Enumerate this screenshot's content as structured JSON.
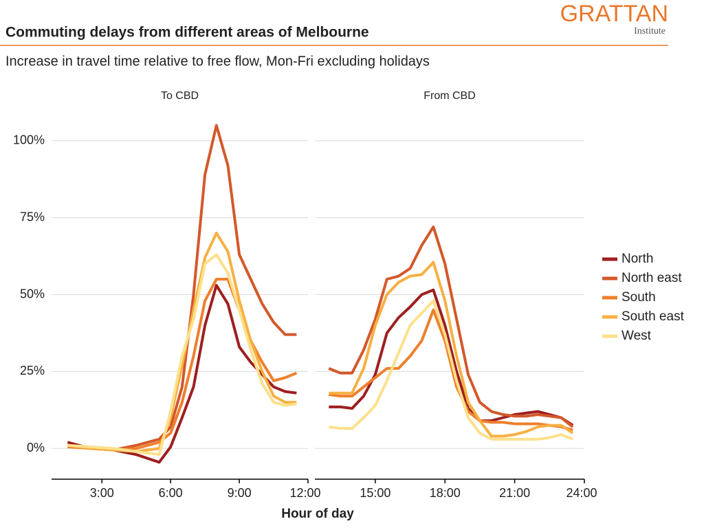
{
  "brand": {
    "name": "GRATTAN",
    "sub": "Institute"
  },
  "title": "Commuting delays from different areas of Melbourne",
  "subtitle": "Increase in travel time relative to free flow, Mon-Fri excluding holidays",
  "x_label": "Hour of day",
  "legend_position": "right",
  "chart_data": [
    {
      "type": "line",
      "title": "To CBD",
      "x": [
        1.5,
        2.5,
        3.5,
        4.5,
        5.5,
        6,
        6.5,
        7,
        7.5,
        8,
        8.5,
        9,
        9.5,
        10,
        10.5,
        11,
        11.5
      ],
      "xlim": [
        0.8,
        12
      ],
      "xticks": [
        {
          "value": 3,
          "label": "3:00"
        },
        {
          "value": 6,
          "label": "6:00"
        },
        {
          "value": 9,
          "label": "9:00"
        },
        {
          "value": 12,
          "label": "12:00"
        }
      ],
      "ylim": [
        -10,
        110
      ],
      "yticks": [
        {
          "value": 0,
          "label": "0%"
        },
        {
          "value": 25,
          "label": "25%"
        },
        {
          "value": 50,
          "label": "50%"
        },
        {
          "value": 75,
          "label": "75%"
        },
        {
          "value": 100,
          "label": "100%"
        }
      ],
      "grid": true,
      "series": [
        {
          "name": "North",
          "color": "#9e1f1f",
          "values": [
            2,
            0,
            -0.5,
            -2,
            -4.5,
            0.5,
            10,
            20,
            40,
            53,
            47,
            33,
            28,
            24,
            20,
            18.5,
            18
          ]
        },
        {
          "name": "North east",
          "color": "#d4582a",
          "values": [
            1,
            0,
            -0.5,
            1,
            3,
            7,
            20,
            50,
            89,
            105,
            92,
            63,
            55,
            47,
            41,
            37,
            37
          ]
        },
        {
          "name": "South",
          "color": "#ee7f2d",
          "values": [
            0.5,
            0,
            -0.5,
            0,
            2,
            5,
            15,
            30,
            48,
            55,
            55,
            45,
            35,
            28,
            22,
            23,
            24.5
          ]
        },
        {
          "name": "South east",
          "color": "#f6b043",
          "values": [
            1,
            0,
            -0.5,
            -1,
            0,
            10,
            27,
            45,
            62,
            70,
            64,
            48,
            35,
            25,
            17,
            15,
            15
          ]
        },
        {
          "name": "West",
          "color": "#fde08b",
          "values": [
            1,
            0.5,
            0,
            -1,
            -2,
            12,
            30,
            42,
            60,
            63,
            57,
            45,
            32,
            21,
            15,
            14,
            14.5
          ]
        }
      ]
    },
    {
      "type": "line",
      "title": "From CBD",
      "x": [
        13,
        13.5,
        14,
        14.5,
        15,
        15.5,
        16,
        16.5,
        17,
        17.5,
        18,
        18.5,
        19,
        19.5,
        20,
        20.5,
        21,
        21.5,
        22,
        22.5,
        23,
        23.5
      ],
      "xlim": [
        12.4,
        24
      ],
      "xticks": [
        {
          "value": 15,
          "label": "15:00"
        },
        {
          "value": 18,
          "label": "18:00"
        },
        {
          "value": 21,
          "label": "21:00"
        },
        {
          "value": 24,
          "label": "24:00"
        }
      ],
      "ylim": [
        -10,
        110
      ],
      "yticks": [
        0,
        25,
        50,
        75,
        100
      ],
      "grid": true,
      "series": [
        {
          "name": "North",
          "color": "#9e1f1f",
          "values": [
            13.5,
            13.5,
            13,
            17,
            24,
            37.5,
            42.5,
            46,
            50,
            51.5,
            40,
            25,
            13,
            9,
            9,
            10,
            11,
            11.5,
            12,
            11,
            10,
            7.5
          ]
        },
        {
          "name": "North east",
          "color": "#d4582a",
          "values": [
            26,
            24.5,
            24.5,
            32,
            42,
            55,
            56,
            58.5,
            66,
            72,
            60,
            42,
            24,
            15,
            12,
            11,
            10.5,
            10.5,
            11,
            10.5,
            10,
            7
          ]
        },
        {
          "name": "South",
          "color": "#ee7f2d",
          "values": [
            17.5,
            17,
            17,
            20,
            23,
            26,
            26,
            30,
            35,
            45,
            35,
            20,
            12,
            9,
            8.5,
            8.5,
            8,
            8,
            8,
            7.5,
            7,
            6
          ]
        },
        {
          "name": "South east",
          "color": "#f6b043",
          "values": [
            18,
            18,
            18,
            26,
            40,
            50,
            54,
            56,
            56.5,
            60.5,
            48,
            30,
            15,
            9,
            4,
            4,
            4.5,
            5.5,
            7,
            7.5,
            7.5,
            5
          ]
        },
        {
          "name": "West",
          "color": "#fde08b",
          "values": [
            7,
            6.5,
            6.5,
            10,
            14,
            22,
            31,
            40,
            44,
            48,
            37,
            22,
            10,
            5,
            3,
            3,
            3,
            3,
            3,
            3.5,
            4.5,
            3
          ]
        }
      ]
    }
  ]
}
